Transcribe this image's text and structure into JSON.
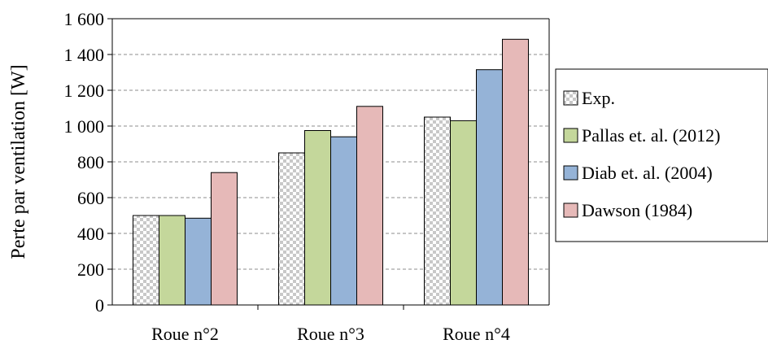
{
  "chart_data": {
    "type": "bar",
    "title": "",
    "xlabel": "",
    "ylabel": "Perte par ventilation [W]",
    "ylim": [
      0,
      1600
    ],
    "yticks": [
      0,
      200,
      400,
      600,
      800,
      1000,
      1200,
      1400,
      1600
    ],
    "ytick_labels": [
      "0",
      "200",
      "400",
      "600",
      "800",
      "1 000",
      "1 200",
      "1 400",
      "1 600"
    ],
    "categories": [
      "Roue n°2",
      "Roue n°3",
      "Roue n°4"
    ],
    "grid": "horizontal dashed",
    "legend_position": "right",
    "series": [
      {
        "name": "Exp.",
        "values": [
          500,
          850,
          1050
        ],
        "color": "#ffffff",
        "pattern": "dotted-grey"
      },
      {
        "name": "Pallas et. al. (2012)",
        "values": [
          500,
          975,
          1030
        ],
        "color": "#c4d79b"
      },
      {
        "name": "Diab et. al. (2004)",
        "values": [
          485,
          940,
          1315
        ],
        "color": "#95b3d7"
      },
      {
        "name": "Dawson (1984)",
        "values": [
          740,
          1110,
          1485
        ],
        "color": "#e6b9b8"
      }
    ]
  }
}
